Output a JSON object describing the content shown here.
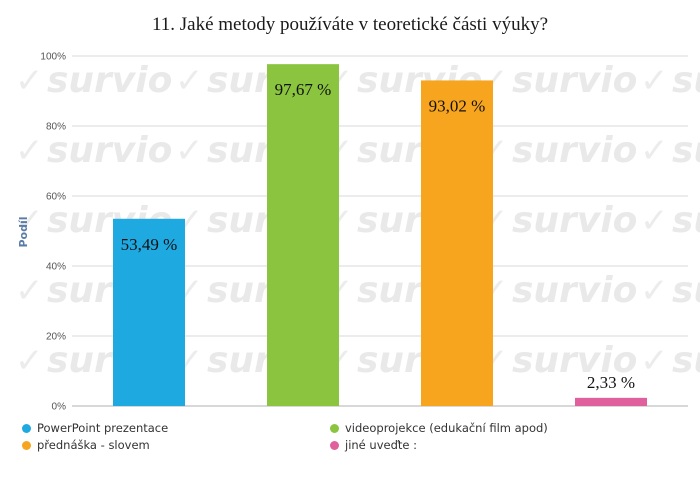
{
  "chart_data": {
    "type": "bar",
    "title": "11. Jaké metody používáte v teoretické části výuky?",
    "ylabel": "Podíl",
    "xlabel": "",
    "ylim": [
      0,
      100
    ],
    "yticks": [
      "0%",
      "20%",
      "40%",
      "60%",
      "80%",
      "100%"
    ],
    "grid": true,
    "legend_position": "bottom",
    "watermark": "survio",
    "categories": [
      "PowerPoint prezentace",
      "videoprojekce (edukační film apod)",
      "přednáška - slovem",
      "jiné uveďte :"
    ],
    "values": [
      53.49,
      97.67,
      93.02,
      2.33
    ],
    "data_labels": [
      "53,49 %",
      "97,67 %",
      "93,02 %",
      "2,33 %"
    ],
    "colors": [
      "#1fa9e1",
      "#8bc540",
      "#f7a51e",
      "#e0609e"
    ]
  }
}
